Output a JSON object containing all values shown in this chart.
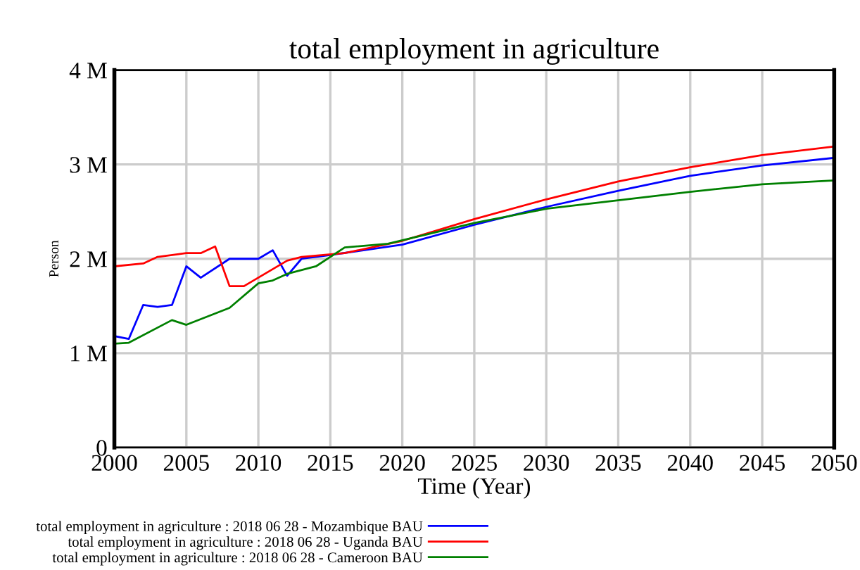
{
  "chart_data": {
    "type": "line",
    "title": "total employment in agriculture",
    "xlabel": "Time (Year)",
    "ylabel": "Person",
    "xlim": [
      2000,
      2050
    ],
    "xticks": [
      2000,
      2005,
      2010,
      2015,
      2020,
      2025,
      2030,
      2035,
      2040,
      2045,
      2050
    ],
    "ylim": [
      0,
      4000000
    ],
    "yticks": [
      {
        "value": 0,
        "label": "0"
      },
      {
        "value": 1000000,
        "label": "1 M"
      },
      {
        "value": 2000000,
        "label": "2 M"
      },
      {
        "value": 3000000,
        "label": "3 M"
      },
      {
        "value": 4000000,
        "label": "4 M"
      }
    ],
    "grid": true,
    "legend": "bottom",
    "marker": "none",
    "line_style": "solid",
    "series": [
      {
        "name": "total employment in agriculture : 2018 06 28 - Mozambique BAU",
        "color": "#0000ff",
        "x": [
          2000,
          2001,
          2002,
          2003,
          2004,
          2005,
          2006,
          2008,
          2010,
          2011,
          2012,
          2013,
          2015,
          2020,
          2025,
          2030,
          2035,
          2040,
          2045,
          2050
        ],
        "values": [
          1180000,
          1150000,
          1510000,
          1490000,
          1510000,
          1920000,
          1800000,
          2000000,
          2000000,
          2090000,
          1820000,
          2000000,
          2040000,
          2150000,
          2360000,
          2550000,
          2720000,
          2880000,
          2990000,
          3070000
        ]
      },
      {
        "name": "total employment in agriculture : 2018 06 28 - Uganda BAU",
        "color": "#ff0000",
        "x": [
          2000,
          2002,
          2003,
          2005,
          2006,
          2007,
          2008,
          2009,
          2012,
          2013,
          2016,
          2020,
          2025,
          2030,
          2035,
          2040,
          2045,
          2050
        ],
        "values": [
          1920000,
          1950000,
          2020000,
          2060000,
          2060000,
          2130000,
          1710000,
          1710000,
          1980000,
          2020000,
          2060000,
          2190000,
          2420000,
          2630000,
          2820000,
          2970000,
          3100000,
          3190000
        ]
      },
      {
        "name": "total employment in agriculture : 2018 06 28 - Cameroon BAU",
        "color": "#008000",
        "x": [
          2000,
          2001,
          2004,
          2005,
          2008,
          2010,
          2011,
          2012,
          2014,
          2016,
          2019,
          2025,
          2030,
          2035,
          2040,
          2045,
          2050
        ],
        "values": [
          1100000,
          1110000,
          1350000,
          1300000,
          1480000,
          1740000,
          1770000,
          1840000,
          1920000,
          2120000,
          2160000,
          2380000,
          2530000,
          2620000,
          2710000,
          2790000,
          2830000
        ]
      }
    ]
  }
}
